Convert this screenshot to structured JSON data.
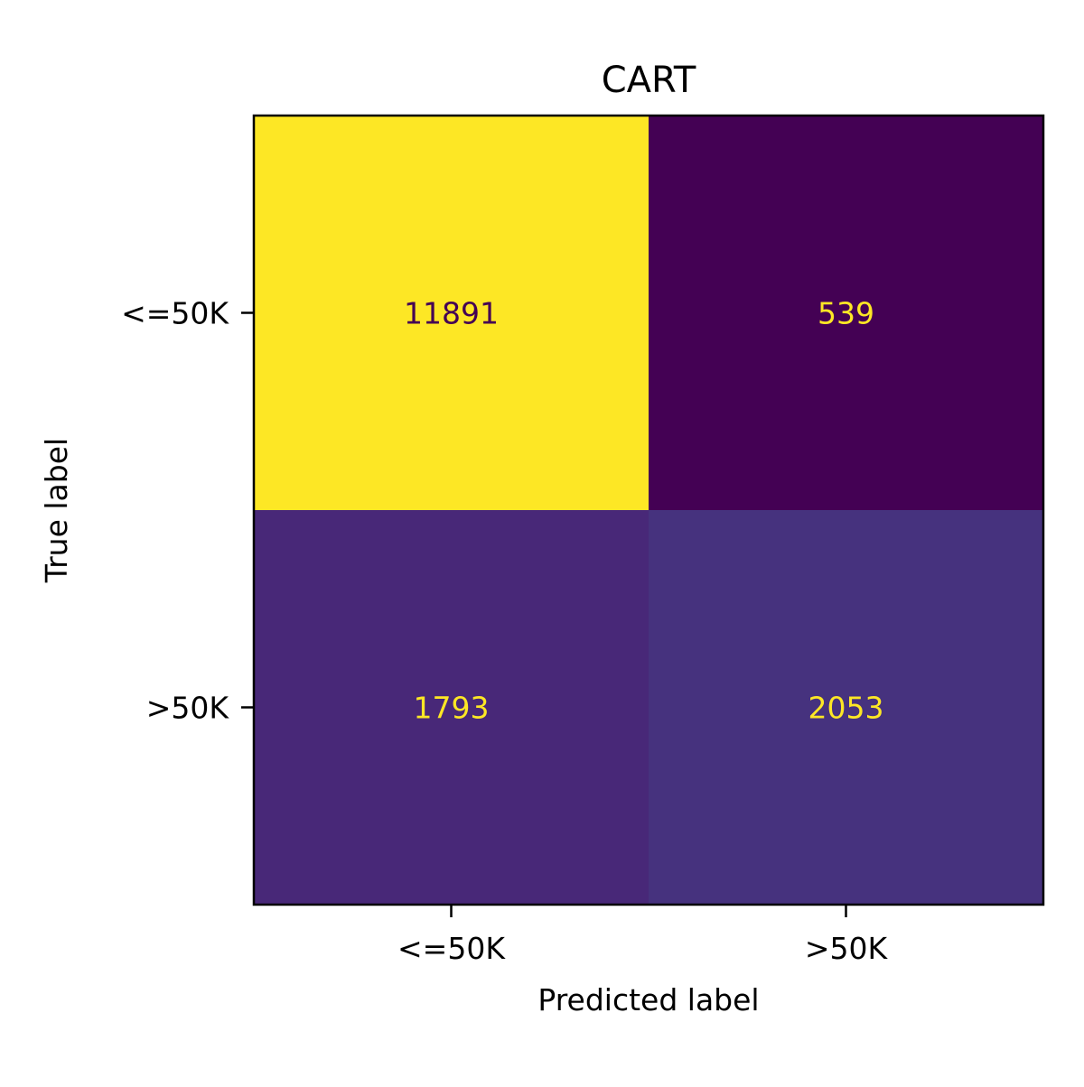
{
  "chart_data": {
    "type": "heatmap",
    "title": "CART",
    "xlabel": "Predicted label",
    "ylabel": "True label",
    "x_categories": [
      "<=50K",
      ">50K"
    ],
    "y_categories": [
      "<=50K",
      ">50K"
    ],
    "values": [
      [
        11891,
        539
      ],
      [
        1793,
        2053
      ]
    ],
    "colormap": "viridis",
    "colors": {
      "cells": [
        [
          "#fde725",
          "#440154"
        ],
        [
          "#482878",
          "#46327e"
        ]
      ],
      "cell_text": [
        [
          "#440154",
          "#fde725"
        ],
        [
          "#fde725",
          "#fde725"
        ]
      ]
    },
    "grid": false,
    "legend": "none"
  }
}
